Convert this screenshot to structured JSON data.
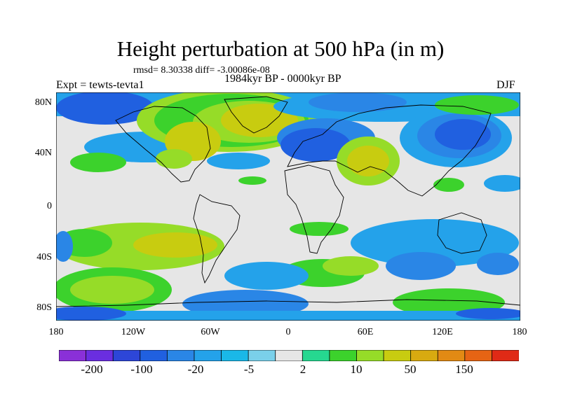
{
  "figure": {
    "title": "Height perturbation at 500 hPa (in m)",
    "stats": "rmsd= 8.30338 diff= -3.00086e-08",
    "experiment": "Expt = tewts-tevta1",
    "period": "1984kyr BP - 0000kyr BP",
    "season": "DJF"
  },
  "axes": {
    "x_ticks": [
      "180",
      "120W",
      "60W",
      "0",
      "60E",
      "120E",
      "180"
    ],
    "y_ticks": [
      "80N",
      "40N",
      "0",
      "40S",
      "80S"
    ]
  },
  "colorbar": {
    "labels": [
      "-200",
      "-100",
      "-20",
      "-5",
      "2",
      "10",
      "50",
      "150"
    ],
    "levels": [
      -200,
      -150,
      -100,
      -50,
      -20,
      -10,
      -5,
      -2,
      2,
      5,
      10,
      20,
      50,
      100,
      150,
      200
    ],
    "colors": [
      "#8a30d8",
      "#6a2ee0",
      "#2d46d8",
      "#2060e0",
      "#2a86e6",
      "#24a2ea",
      "#1ab8e8",
      "#7ad0ea",
      "#e6e6e6",
      "#26d890",
      "#3cd22c",
      "#96dc28",
      "#c8cc10",
      "#d8aa10",
      "#e28a14",
      "#e66414",
      "#e02a16"
    ]
  },
  "map": {
    "projection": "equirectangular",
    "lon_range": [
      -180,
      180
    ],
    "lat_range": [
      -90,
      90
    ]
  }
}
